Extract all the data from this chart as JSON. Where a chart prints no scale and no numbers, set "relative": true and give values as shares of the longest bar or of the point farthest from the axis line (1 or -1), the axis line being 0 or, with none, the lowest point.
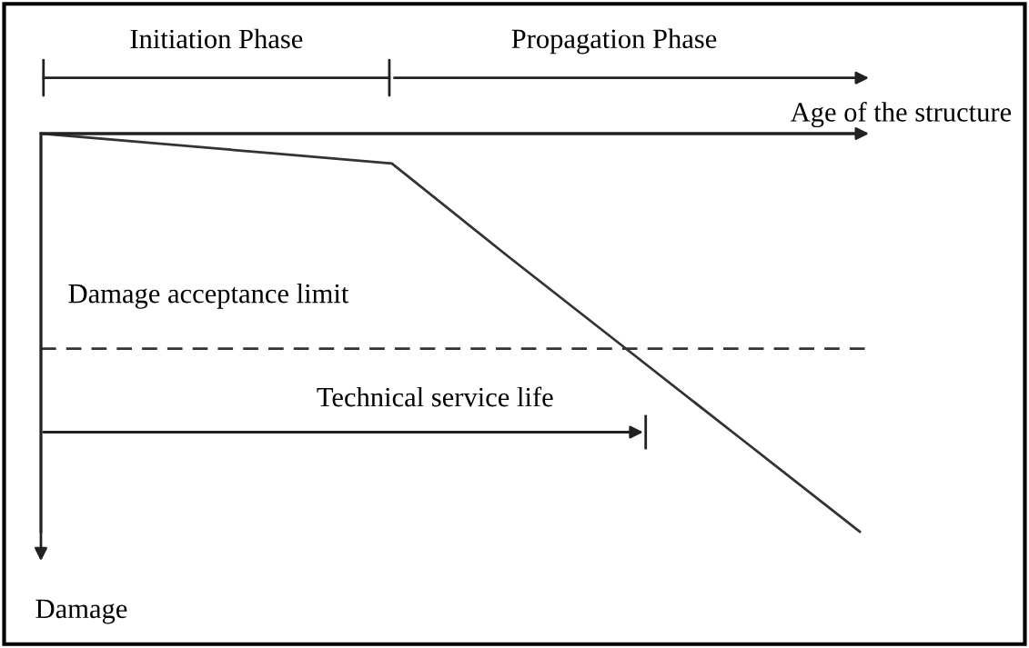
{
  "chart_data": {
    "type": "line",
    "relative": true,
    "xlabel": "Age of the structure",
    "categories": [
      null,
      null,
      null,
      null,
      null,
      null,
      null,
      null
    ],
    "series": [
      {
        "color": "#333333",
        "values": [
          0,
          -0.025,
          -0.05,
          -0.075,
          -0.31,
          -0.54,
          -0.77,
          -1
        ]
      }
    ],
    "ref_lines": [
      {
        "axis": "y",
        "value": -0.54,
        "label": "Damage acceptance limit",
        "color": "#333333",
        "line_style": "dashed"
      }
    ],
    "annotations": [
      "Initiation Phase",
      "Propagation Phase",
      "Technical service life",
      "Damage"
    ],
    "marker": "none",
    "line_style": "solid",
    "tick_labels": false
  }
}
